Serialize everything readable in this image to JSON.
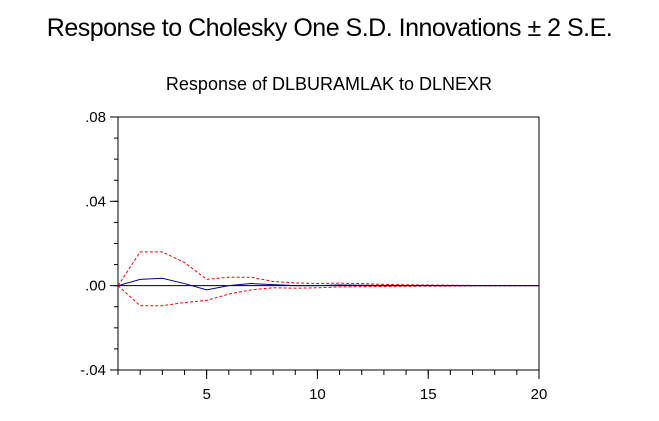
{
  "figure_title": "Response to Cholesky One S.D. Innovations ± 2 S.E.",
  "chart_data": {
    "type": "line",
    "title": "Response of DLBURAMLAK to DLNEXR",
    "xlabel": "",
    "ylabel": "",
    "xlim": [
      1,
      20
    ],
    "ylim": [
      -0.04,
      0.08
    ],
    "x_ticks": [
      5,
      10,
      15,
      20
    ],
    "x_tick_labels": [
      "5",
      "10",
      "15",
      "20"
    ],
    "y_ticks": [
      -0.04,
      0.0,
      0.04,
      0.08
    ],
    "y_tick_labels": [
      "-.04",
      ".00",
      ".04",
      ".08"
    ],
    "grid": false,
    "legend": "none",
    "x": [
      1,
      2,
      3,
      4,
      5,
      6,
      7,
      8,
      9,
      10,
      11,
      12,
      13,
      14,
      15,
      16,
      17,
      18,
      19,
      20
    ],
    "series": [
      {
        "role": "response",
        "color": "#00008b",
        "style": "solid",
        "values": [
          0.0,
          0.003,
          0.0035,
          0.001,
          -0.002,
          0.0,
          0.001,
          0.0005,
          0.0,
          0.0,
          0.0003,
          0.0002,
          0.0001,
          0.0,
          0.0,
          0.0,
          0.0,
          0.0,
          0.0,
          0.0
        ]
      },
      {
        "role": "upper band (+2 S.E.)",
        "color": "#ff0000",
        "style": "dashed",
        "values": [
          0.0,
          0.016,
          0.016,
          0.011,
          0.003,
          0.004,
          0.004,
          0.002,
          0.0013,
          0.001,
          0.0012,
          0.001,
          0.0006,
          0.0004,
          0.0003,
          0.0002,
          0.0001,
          0.0001,
          0.0001,
          0.0
        ]
      },
      {
        "role": "lower band (-2 S.E.)",
        "color": "#ff0000",
        "style": "dashed",
        "values": [
          0.0,
          -0.0095,
          -0.0095,
          -0.008,
          -0.007,
          -0.004,
          -0.002,
          -0.001,
          -0.0012,
          -0.001,
          -0.0006,
          -0.0005,
          -0.0004,
          -0.0003,
          -0.0002,
          -0.0002,
          -0.0001,
          -0.0001,
          -0.0001,
          0.0
        ]
      }
    ],
    "zero_line": true
  }
}
